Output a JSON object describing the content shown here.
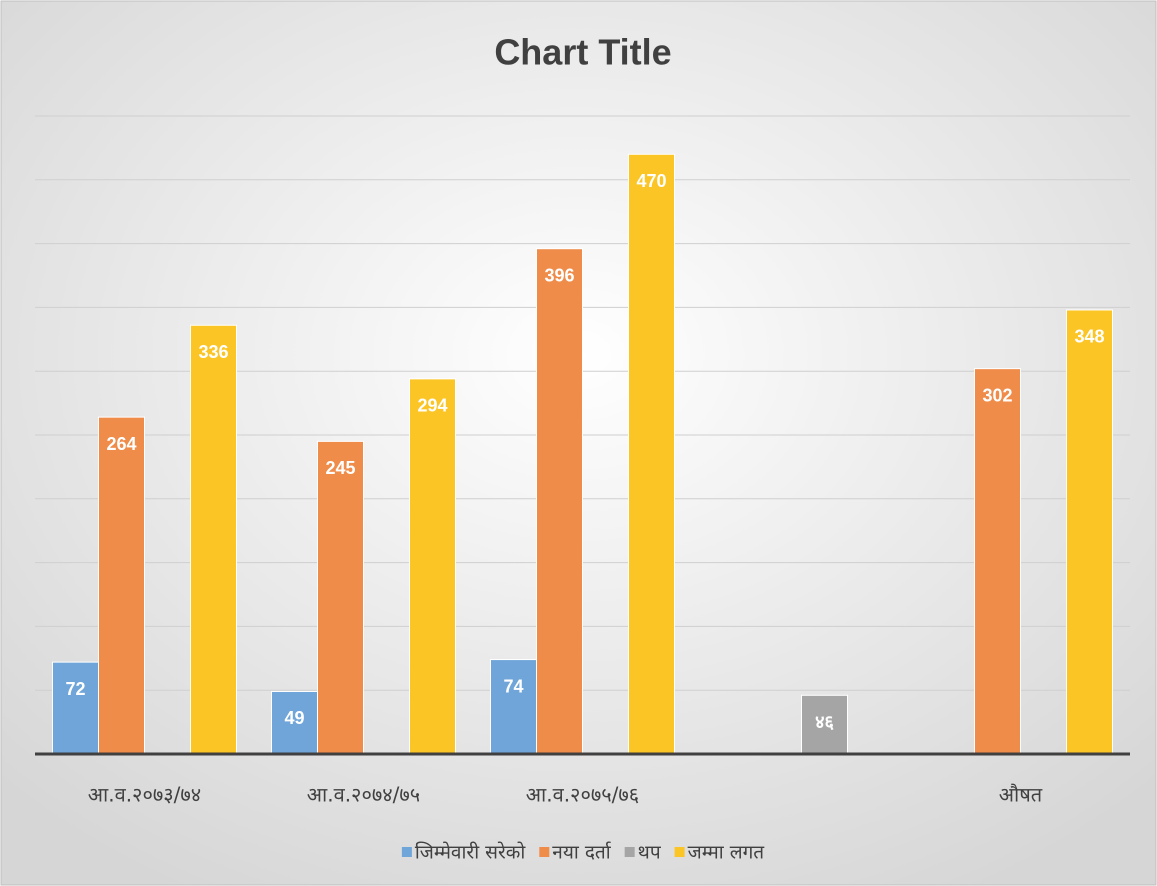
{
  "chart_data": {
    "type": "bar",
    "title": "Chart Title",
    "categories": [
      "आ.व.२०७३/७४",
      "आ.व.२०७४/७५",
      "आ.व.२०७५/७६",
      null,
      "औषत"
    ],
    "series": [
      {
        "name": "जिम्मेवारी सरेको",
        "color": "#6fa5d9",
        "values": [
          72,
          49,
          74,
          null,
          null
        ]
      },
      {
        "name": "नया दर्ता",
        "color": "#ef8c4a",
        "values": [
          264,
          245,
          396,
          null,
          302
        ]
      },
      {
        "name": "थप",
        "color": "#a5a5a5",
        "values": [
          null,
          null,
          null,
          46,
          null
        ],
        "value_labels": [
          null,
          null,
          null,
          "४६",
          null
        ]
      },
      {
        "name": "जम्मा लगत",
        "color": "#fcc526",
        "values": [
          336,
          294,
          470,
          null,
          348
        ]
      }
    ],
    "ylim": [
      0,
      500
    ],
    "yticks": [
      0,
      50,
      100,
      150,
      200,
      250,
      300,
      350,
      400,
      450,
      500
    ],
    "grid": true,
    "legend": "bottom"
  }
}
